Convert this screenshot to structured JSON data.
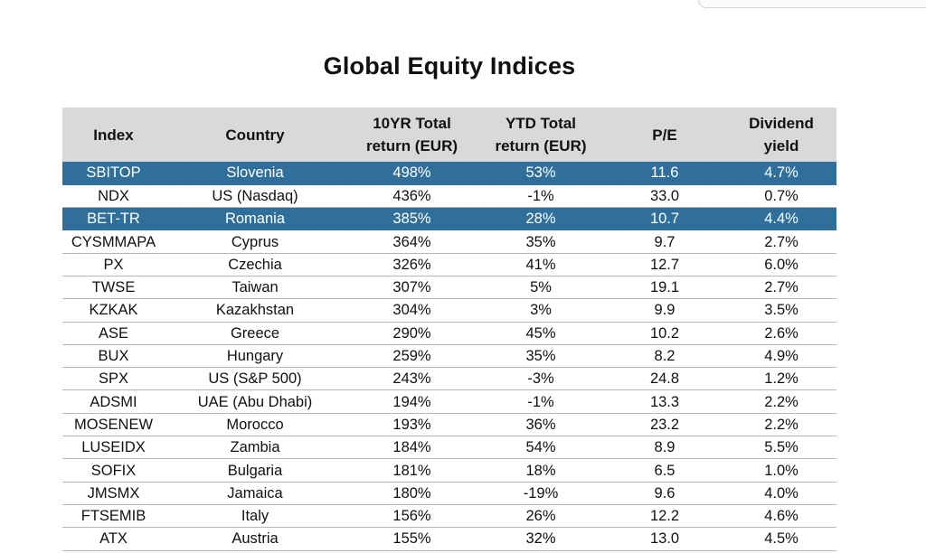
{
  "title": "Global Equity Indices",
  "columns": [
    "Index",
    "Country",
    "10YR Total\nreturn (EUR)",
    "YTD Total\nreturn (EUR)",
    "P/E",
    "Dividend\nyield"
  ],
  "rows": [
    {
      "index": "SBITOP",
      "country": "Slovenia",
      "ret10": "498%",
      "ytd": "53%",
      "pe": "11.6",
      "div": "4.7%",
      "highlight": true
    },
    {
      "index": "NDX",
      "country": "US (Nasdaq)",
      "ret10": "436%",
      "ytd": "-1%",
      "pe": "33.0",
      "div": "0.7%",
      "highlight": false
    },
    {
      "index": "BET-TR",
      "country": "Romania",
      "ret10": "385%",
      "ytd": "28%",
      "pe": "10.7",
      "div": "4.4%",
      "highlight": true
    },
    {
      "index": "CYSMMAPA",
      "country": "Cyprus",
      "ret10": "364%",
      "ytd": "35%",
      "pe": "9.7",
      "div": "2.7%",
      "highlight": false
    },
    {
      "index": "PX",
      "country": "Czechia",
      "ret10": "326%",
      "ytd": "41%",
      "pe": "12.7",
      "div": "6.0%",
      "highlight": false
    },
    {
      "index": "TWSE",
      "country": "Taiwan",
      "ret10": "307%",
      "ytd": "5%",
      "pe": "19.1",
      "div": "2.7%",
      "highlight": false
    },
    {
      "index": "KZKAK",
      "country": "Kazakhstan",
      "ret10": "304%",
      "ytd": "3%",
      "pe": "9.9",
      "div": "3.5%",
      "highlight": false
    },
    {
      "index": "ASE",
      "country": "Greece",
      "ret10": "290%",
      "ytd": "45%",
      "pe": "10.2",
      "div": "2.6%",
      "highlight": false
    },
    {
      "index": "BUX",
      "country": "Hungary",
      "ret10": "259%",
      "ytd": "35%",
      "pe": "8.2",
      "div": "4.9%",
      "highlight": false
    },
    {
      "index": "SPX",
      "country": "US (S&P 500)",
      "ret10": "243%",
      "ytd": "-3%",
      "pe": "24.8",
      "div": "1.2%",
      "highlight": false
    },
    {
      "index": "ADSMI",
      "country": "UAE (Abu Dhabi)",
      "ret10": "194%",
      "ytd": "-1%",
      "pe": "13.3",
      "div": "2.2%",
      "highlight": false
    },
    {
      "index": "MOSENEW",
      "country": "Morocco",
      "ret10": "193%",
      "ytd": "36%",
      "pe": "23.2",
      "div": "2.2%",
      "highlight": false
    },
    {
      "index": "LUSEIDX",
      "country": "Zambia",
      "ret10": "184%",
      "ytd": "54%",
      "pe": "8.9",
      "div": "5.5%",
      "highlight": false
    },
    {
      "index": "SOFIX",
      "country": "Bulgaria",
      "ret10": "181%",
      "ytd": "18%",
      "pe": "6.5",
      "div": "1.0%",
      "highlight": false
    },
    {
      "index": "JMSMX",
      "country": "Jamaica",
      "ret10": "180%",
      "ytd": "-19%",
      "pe": "9.6",
      "div": "4.0%",
      "highlight": false
    },
    {
      "index": "FTSEMIB",
      "country": "Italy",
      "ret10": "156%",
      "ytd": "26%",
      "pe": "12.2",
      "div": "4.6%",
      "highlight": false
    },
    {
      "index": "ATX",
      "country": "Austria",
      "ret10": "155%",
      "ytd": "32%",
      "pe": "13.0",
      "div": "4.5%",
      "highlight": false
    }
  ],
  "colors": {
    "header_bg": "#d9d9d9",
    "highlight_bg": "#2f6f99",
    "highlight_text": "#ffffff",
    "row_border": "#b7b7b7"
  }
}
